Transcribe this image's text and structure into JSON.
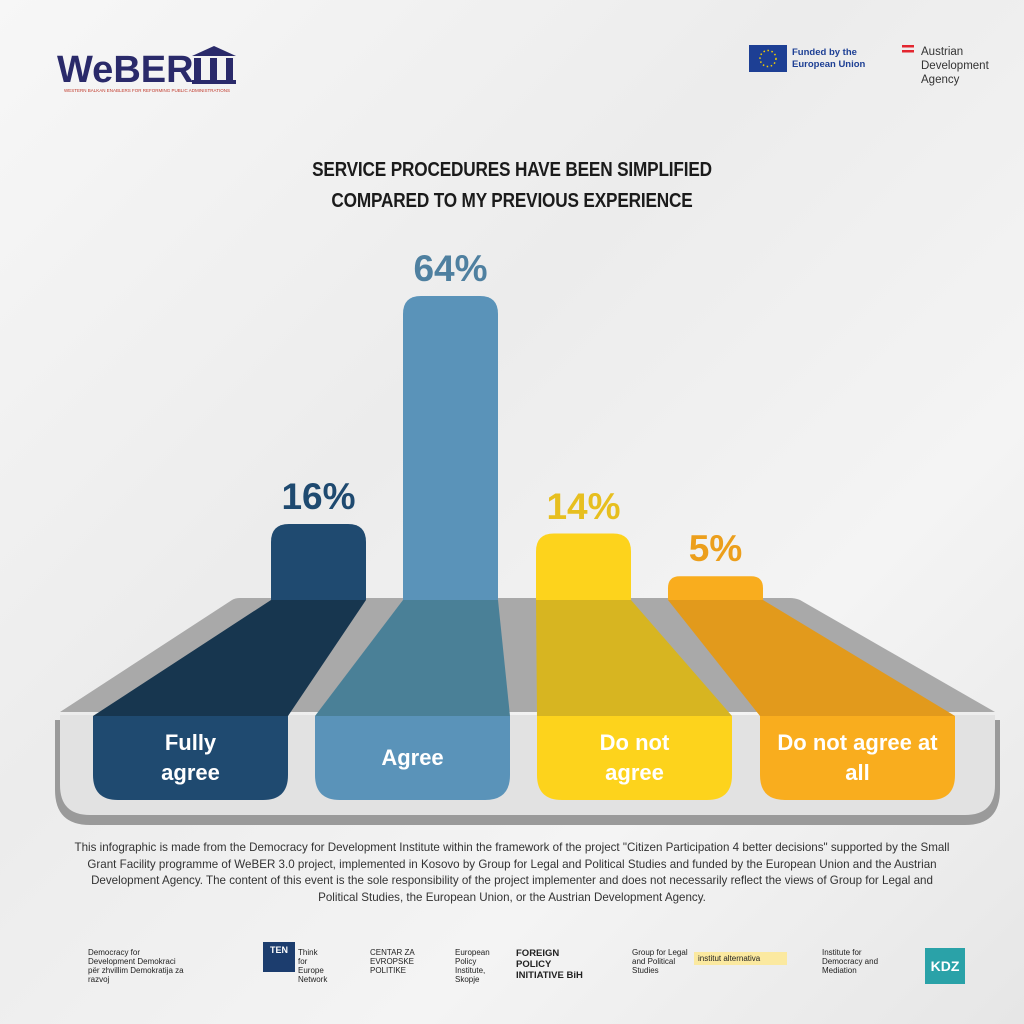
{
  "header": {
    "logo": "WeBER",
    "logo_tagline": "WESTERN BALKAN ENABLERS FOR REFORMING PUBLIC ADMINISTRATIONS",
    "eu": "Funded by the European Union",
    "ada": "Austrian Development Agency"
  },
  "chart_data": {
    "type": "bar",
    "title": "SERVICE PROCEDURES HAVE BEEN SIMPLIFIED COMPARED TO MY PREVIOUS EXPERIENCE",
    "categories": [
      "Fully agree",
      "Agree",
      "Do not agree",
      "Do not agree at all"
    ],
    "values": [
      16,
      64,
      14,
      5
    ],
    "value_labels": [
      "16%",
      "64%",
      "14%",
      "5%"
    ],
    "colors": [
      "#1f4a70",
      "#5a93b9",
      "#fdd31c",
      "#f9ad1e"
    ],
    "label_colors": [
      "#1f4a70",
      "#4f80a0",
      "#e7bf1f",
      "#ec9f1c"
    ]
  },
  "footer": {
    "text": "This infographic is made from the Democracy for Development Institute within the framework of the project \"Citizen Participation 4 better decisions\" supported by the Small Grant Facility programme of WeBER 3.0 project, implemented in Kosovo by Group for Legal and Political Studies and funded by the European Union and the Austrian Development Agency. The content of this event is the sole responsibility of the project implementer and does not necessarily reflect the views of Group for Legal and Political Studies, the European Union, or the Austrian Development Agency.",
    "partners": [
      "Democracy for Development Demokraci për zhvillim Demokratija za razvoj",
      "TEN",
      "Think for Europe Network",
      "CENTAR ZA EVROPSKE POLITIKE",
      "European Policy Institute, Skopje",
      "FOREIGN POLICY INITIATIVE BiH",
      "Group for Legal and Political Studies",
      "institut alternativa",
      "Institute for Democracy and Mediation",
      "KDZ"
    ]
  }
}
